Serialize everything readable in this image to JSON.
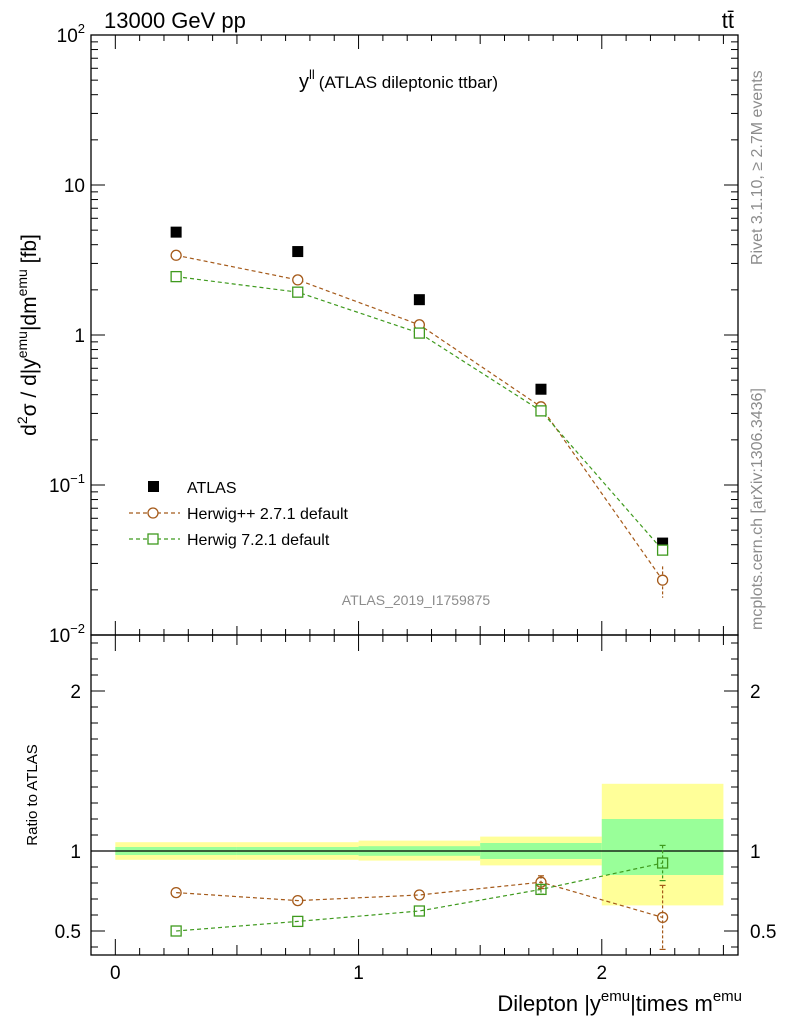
{
  "header": {
    "left": "13000 GeV pp",
    "right": "tt̄"
  },
  "side_text": {
    "rivet": "Rivet 3.1.10, ≥ 2.7M events",
    "mcplots": "mcplots.cern.ch [arXiv:1306.3436]"
  },
  "colors": {
    "data": "#000000",
    "herwigpp": "#a55a1a",
    "herwig7": "#3f9a1e",
    "band_outer": "#ffff99",
    "band_inner": "#99ff99",
    "watermark": "#8c8c8c"
  },
  "chart_data": [
    {
      "type": "scatter",
      "panel": "main",
      "title": "y",
      "title_superscript": "ll",
      "title_suffix": "(ATLAS dileptonic ttbar)",
      "analysis_id": "ATLAS_2019_I1759875",
      "ylabel": {
        "p1": "d",
        "p1sup": "2",
        "p2": "σ / d|y",
        "p2sup": "emu",
        "p3": "|dm",
        "p3sup": "emu",
        "p4": " [fb]"
      },
      "yscale": "log",
      "ylim": [
        0.01,
        100
      ],
      "y_ticks": [
        {
          "value": 0.01,
          "base": "10",
          "exp": "−2"
        },
        {
          "value": 0.1,
          "base": "10",
          "exp": "−1"
        },
        {
          "value": 1,
          "base": "1",
          "exp": ""
        },
        {
          "value": 10,
          "base": "10",
          "exp": ""
        },
        {
          "value": 100,
          "base": "10",
          "exp": "2"
        }
      ],
      "xlim": [
        -0.1,
        2.56
      ],
      "x": [
        0.25,
        0.75,
        1.25,
        1.75,
        2.25
      ],
      "series": [
        {
          "name": "ATLAS",
          "style": "data",
          "values": [
            4.85,
            3.6,
            1.72,
            0.435,
            0.041
          ]
        },
        {
          "name": "Herwig++ 2.7.1 default",
          "style": "herwigpp",
          "values": [
            3.4,
            2.33,
            1.17,
            0.332,
            0.0232
          ],
          "err": [
            0.05,
            0.05,
            0.03,
            0.012,
            0.0055
          ]
        },
        {
          "name": "Herwig 7.2.1 default",
          "style": "herwig7",
          "values": [
            2.45,
            1.93,
            1.03,
            0.312,
            0.0368
          ],
          "err": [
            0.03,
            0.03,
            0.02,
            0.01,
            0.003
          ]
        }
      ],
      "legend": {
        "placement": "lower-left",
        "entries": [
          "ATLAS",
          "Herwig++ 2.7.1 default",
          "Herwig 7.2.1 default"
        ]
      }
    },
    {
      "type": "scatter",
      "panel": "ratio",
      "ylabel": "Ratio to ATLAS",
      "ylim": [
        0.35,
        2.35
      ],
      "y_ticks": [
        {
          "value": 0.5,
          "label": "0.5"
        },
        {
          "value": 1,
          "label": "1"
        },
        {
          "value": 2,
          "label": "2"
        }
      ],
      "xlabel": {
        "p1": "Dilepton |y",
        "p1sup": "emu",
        "p2": "|times m",
        "p2sup": "emu"
      },
      "xlim": [
        -0.1,
        2.56
      ],
      "x_ticks": [
        {
          "value": 0,
          "label": "0"
        },
        {
          "value": 1,
          "label": "1"
        },
        {
          "value": 2,
          "label": "2"
        }
      ],
      "bins": [
        [
          0,
          0.5
        ],
        [
          0.5,
          1
        ],
        [
          1,
          1.5
        ],
        [
          1.5,
          2
        ],
        [
          2,
          2.5
        ]
      ],
      "band_inner": [
        [
          0.975,
          1.025
        ],
        [
          0.975,
          1.025
        ],
        [
          0.97,
          1.03
        ],
        [
          0.95,
          1.05
        ],
        [
          0.85,
          1.2
        ]
      ],
      "band_outer": [
        [
          0.945,
          1.055
        ],
        [
          0.945,
          1.055
        ],
        [
          0.94,
          1.065
        ],
        [
          0.91,
          1.09
        ],
        [
          0.66,
          1.42
        ]
      ],
      "x": [
        0.25,
        0.75,
        1.25,
        1.75,
        2.25
      ],
      "series": [
        {
          "name": "Herwig++ 2.7.1 default",
          "style": "herwigpp",
          "values": [
            0.74,
            0.69,
            0.725,
            0.805,
            0.585
          ],
          "err": [
            0.008,
            0.008,
            0.008,
            0.04,
            0.2
          ]
        },
        {
          "name": "Herwig 7.2.1 default",
          "style": "herwig7",
          "values": [
            0.5,
            0.56,
            0.625,
            0.76,
            0.925
          ],
          "err": [
            0.005,
            0.005,
            0.005,
            0.03,
            0.11
          ]
        }
      ]
    }
  ]
}
